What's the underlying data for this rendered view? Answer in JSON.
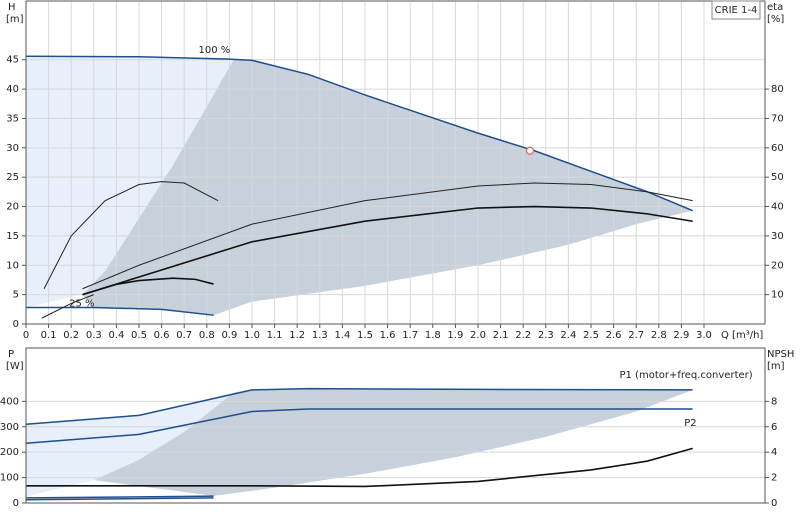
{
  "chart_data": [
    {
      "type": "line",
      "title": "CRIE 1-4",
      "ylabel": "H",
      "ylabel_unit": "[m]",
      "y2label": "eta",
      "y2label_unit": "[%]",
      "xlabel": "Q [m³/h]",
      "xlim": [
        0,
        3.27
      ],
      "ylim": [
        0,
        55
      ],
      "y2lim": [
        0,
        110
      ],
      "grid": true,
      "xticks": [
        0,
        0.1,
        0.2,
        0.3,
        0.4,
        0.5,
        0.6,
        0.7,
        0.8,
        0.9,
        {
          "value": 1,
          "label": "1.0"
        },
        1.1,
        1.2,
        1.3,
        1.4,
        1.5,
        1.6,
        1.7,
        1.8,
        1.9,
        {
          "value": 2,
          "label": "2.0"
        },
        2.1,
        2.2,
        2.3,
        2.4,
        2.5,
        2.6,
        2.7,
        2.8,
        2.9,
        {
          "value": 3,
          "label": "3.0"
        }
      ],
      "yticks": [
        0,
        5,
        10,
        15,
        20,
        25,
        30,
        35,
        40,
        45
      ],
      "y2ticks": [
        10,
        20,
        30,
        40,
        50,
        60,
        70,
        80
      ],
      "regions": [
        {
          "color": "#e6effa",
          "x": [
            0,
            0.5,
            0.92,
            0.8,
            0.65,
            0.5,
            0.35,
            0.25,
            0
          ],
          "values": [
            45.6,
            45.5,
            45.1,
            37,
            27,
            18,
            9,
            5,
            2.8
          ]
        },
        {
          "color": "#c7d1dc",
          "x": [
            0.92,
            1.0,
            1.25,
            1.5,
            2.0,
            2.25,
            2.5,
            2.75,
            2.95,
            2.7,
            2.4,
            2.0,
            1.5,
            1.0,
            0.83,
            0.6,
            0.3,
            0.25,
            0.35,
            0.5,
            0.65,
            0.8
          ],
          "values": [
            45.1,
            44.9,
            42.5,
            39,
            32.5,
            29.5,
            26,
            22.5,
            19.3,
            17,
            13.5,
            10,
            6.5,
            3.8,
            1.5,
            2.5,
            2.8,
            5,
            9,
            18,
            27,
            37
          ]
        }
      ],
      "series": [
        {
          "name": "100 %",
          "color": "#1f4e8c",
          "width": 1.5,
          "x": [
            0,
            0.5,
            0.9,
            1.0,
            1.25,
            1.5,
            2.0,
            2.25,
            2.5,
            2.75,
            2.95
          ],
          "values": [
            45.6,
            45.5,
            45.1,
            44.9,
            42.5,
            39,
            32.5,
            29.5,
            26,
            22.5,
            19.3
          ]
        },
        {
          "name": "25 %",
          "color": "#1f4e8c",
          "width": 1.5,
          "x": [
            0,
            0.3,
            0.6,
            0.83
          ],
          "values": [
            2.8,
            2.8,
            2.5,
            1.5
          ]
        },
        {
          "color": "#222",
          "width": 1,
          "axis": "y2",
          "x": [
            0.25,
            0.5,
            1.0,
            1.5,
            2.0,
            2.25,
            2.5,
            2.75,
            2.95
          ],
          "values": [
            12,
            20,
            34,
            42,
            47,
            48,
            47.5,
            45,
            42
          ]
        },
        {
          "color": "#111",
          "width": 1.6,
          "axis": "y2",
          "x": [
            0.25,
            0.5,
            1.0,
            1.5,
            2.0,
            2.25,
            2.5,
            2.75,
            2.95
          ],
          "values": [
            10,
            16,
            28,
            35,
            39.5,
            40,
            39.5,
            37.5,
            35
          ]
        },
        {
          "color": "#222",
          "width": 1,
          "axis": "y2",
          "x": [
            0.08,
            0.2,
            0.35,
            0.5,
            0.6,
            0.7,
            0.85
          ],
          "values": [
            12,
            30,
            42,
            47.5,
            48.5,
            48,
            42
          ]
        },
        {
          "color": "#111",
          "width": 1.6,
          "axis": "y2",
          "x": [
            0.25,
            0.4,
            0.5,
            0.65,
            0.75,
            0.83
          ],
          "values": [
            10,
            13.5,
            14.8,
            15.6,
            15.2,
            13.6
          ]
        },
        {
          "color": "#222",
          "width": 1,
          "axis": "y2",
          "x": [
            0.07,
            0.2,
            0.3
          ],
          "values": [
            2,
            7,
            10
          ]
        }
      ],
      "points": [
        {
          "color": "#e06060",
          "x": 2.23,
          "y": 29.5
        }
      ]
    },
    {
      "type": "line",
      "ylabel": "P",
      "ylabel_unit": "[W]",
      "y2label": "NPSH",
      "y2label_unit": "[m]",
      "xlim": [
        0,
        3.27
      ],
      "ylim": [
        0,
        610
      ],
      "y2lim": [
        0,
        12.2
      ],
      "grid": true,
      "yticks": [
        0,
        100,
        200,
        300,
        400
      ],
      "y2ticks": [
        0,
        2,
        4,
        6,
        8
      ],
      "regions": [
        {
          "color": "#e6effa",
          "x": [
            0,
            0.5,
            0.92,
            0.7,
            0.5,
            0.3,
            0
          ],
          "values": [
            310,
            345,
            435,
            280,
            170,
            90,
            25
          ]
        },
        {
          "color": "#c7d1dc",
          "x": [
            0.92,
            1.0,
            1.25,
            2.0,
            2.95,
            2.7,
            2.3,
            1.9,
            1.5,
            1.1,
            0.83,
            0.3,
            0.5,
            0.7
          ],
          "values": [
            435,
            445,
            450,
            447,
            445,
            360,
            260,
            180,
            115,
            60,
            28,
            90,
            170,
            280
          ]
        }
      ],
      "series": [
        {
          "name": "P1 (motor+freq.converter)",
          "color": "#1f4e8c",
          "width": 1.5,
          "x": [
            0,
            0.5,
            1.0,
            1.25,
            2.0,
            2.95
          ],
          "values": [
            310,
            345,
            445,
            450,
            447,
            445
          ]
        },
        {
          "name": "P2",
          "color": "#1f4e8c",
          "width": 1.5,
          "x": [
            0,
            0.5,
            1.0,
            1.25,
            2.95
          ],
          "values": [
            235,
            270,
            360,
            370,
            370
          ]
        },
        {
          "color": "#1f4e8c",
          "width": 1.5,
          "x": [
            0,
            0.83
          ],
          "values": [
            20,
            27
          ]
        },
        {
          "color": "#1f4e8c",
          "width": 1.5,
          "x": [
            0,
            0.83
          ],
          "values": [
            13,
            20
          ]
        },
        {
          "color": "#111",
          "width": 1.6,
          "axis": "y2",
          "x": [
            0,
            1.0,
            1.5,
            2.0,
            2.5,
            2.75,
            2.95
          ],
          "values": [
            1.35,
            1.35,
            1.3,
            1.7,
            2.6,
            3.3,
            4.3
          ]
        }
      ]
    }
  ]
}
